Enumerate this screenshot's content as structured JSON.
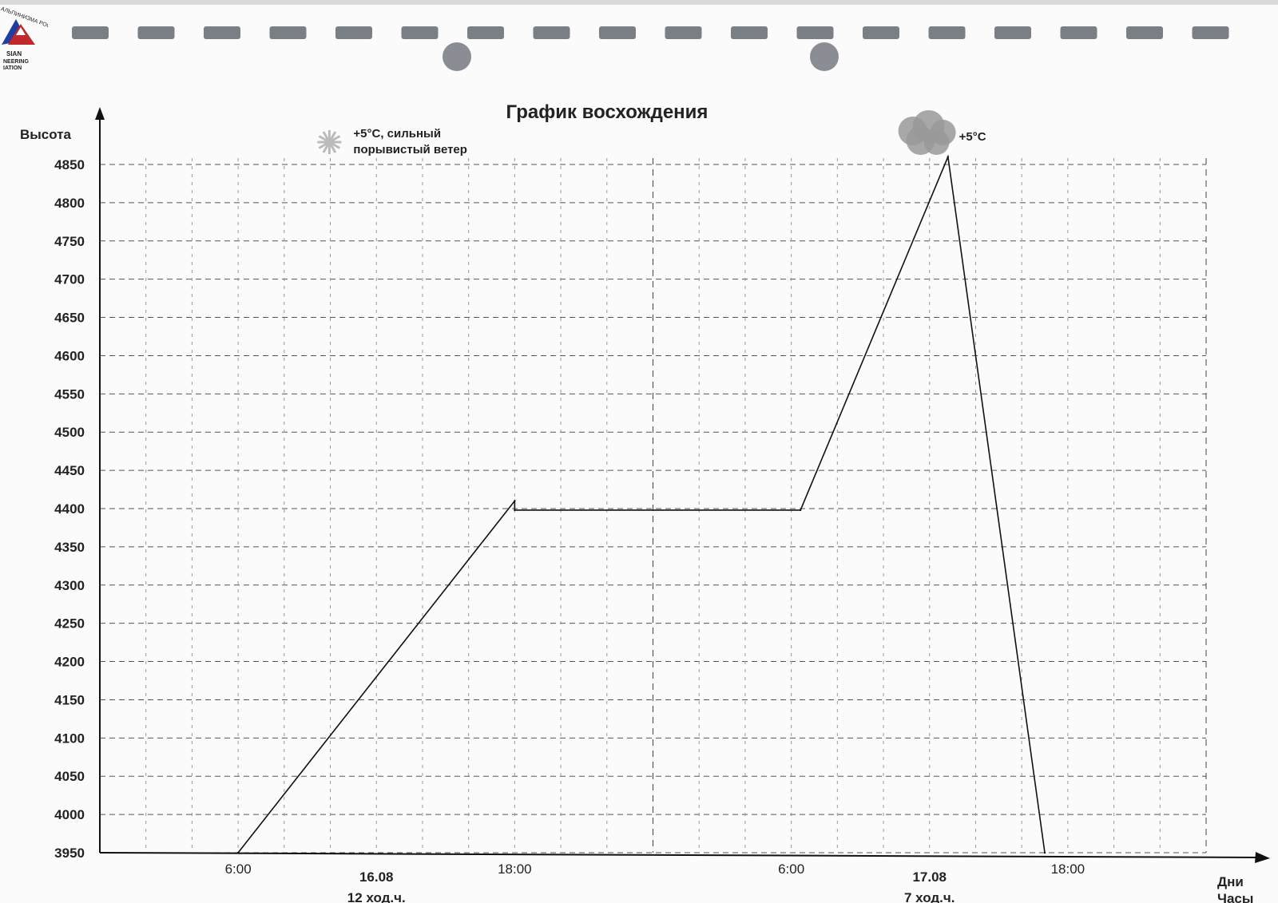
{
  "logo": {
    "text_lines": [
      "АЛЬПИНИЗМА РОССИИ",
      "SIAN",
      "NEERING",
      "IATION"
    ]
  },
  "chart_data": {
    "type": "line",
    "title": "График восхождения",
    "ylabel": "Высота",
    "xlabel_lines": [
      "Дни",
      "Часы"
    ],
    "ylim": [
      3950,
      4850
    ],
    "yticks": [
      3950,
      4000,
      4050,
      4100,
      4150,
      4200,
      4250,
      4300,
      4350,
      4400,
      4450,
      4500,
      4550,
      4600,
      4650,
      4700,
      4750,
      4800,
      4850
    ],
    "x_unit": "hours from 00:00 16.08",
    "xlim": [
      0,
      48
    ],
    "xticks": [
      {
        "x": 6,
        "label": "6:00"
      },
      {
        "x": 18,
        "label": "18:00"
      },
      {
        "x": 30,
        "label": "6:00"
      },
      {
        "x": 42,
        "label": "18:00"
      }
    ],
    "days": [
      {
        "x": 12,
        "date": "16.08",
        "hours": "12 ход.ч."
      },
      {
        "x": 36,
        "date": "17.08",
        "hours": "7 ход.ч."
      }
    ],
    "grid": true,
    "series": [
      {
        "x": [
          6,
          18,
          18,
          30.4,
          36.8,
          41
        ],
        "y": [
          3950,
          4410,
          4398,
          4398,
          4860,
          3950
        ]
      }
    ],
    "annotations": [
      {
        "x": 11,
        "y": 4850,
        "icon": "wind-snow-icon",
        "lines": [
          "+5°C, сильный",
          "порывистый ветер"
        ]
      },
      {
        "x": 37,
        "y": 4850,
        "icon": "cloud-icon",
        "lines": [
          "+5°C"
        ]
      }
    ]
  }
}
